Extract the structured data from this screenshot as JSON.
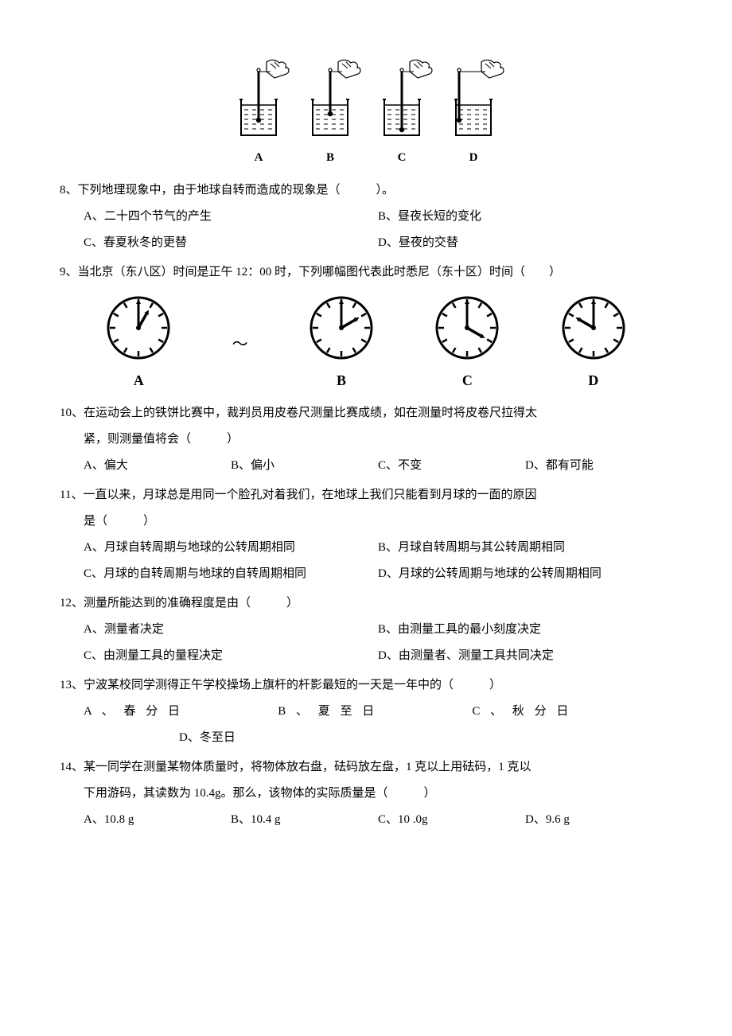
{
  "beaker_figure": {
    "labels": [
      "A",
      "B",
      "C",
      "D"
    ],
    "thermo_depth": [
      26,
      18,
      38,
      26
    ],
    "touches_side": [
      false,
      false,
      false,
      true
    ],
    "stroke": "#000000",
    "fill": "#ffffff"
  },
  "q8": {
    "stem": "8、下列地理现象中，由于地球自转而造成的现象是（　　　）。",
    "optA": "A、二十四个节气的产生",
    "optB": "B、昼夜长短的变化",
    "optC": "C、春夏秋冬的更替",
    "optD": "D、昼夜的交替"
  },
  "q9": {
    "stem": "9、当北京（东八区）时间是正午 12：00 时，下列哪幅图代表此时悉尼（东十区）时间（　　）",
    "clocks": {
      "labels": [
        "A",
        "B",
        "C",
        "D"
      ],
      "minute_angle": [
        0,
        0,
        0,
        0
      ],
      "hour_angle": [
        30,
        60,
        120,
        300
      ],
      "stroke": "#000000"
    }
  },
  "q10": {
    "stem": "10、在运动会上的铁饼比赛中，裁判员用皮卷尺测量比赛成绩，如在测量时将皮卷尺拉得太",
    "cont": "紧，则测量值将会（　　　）",
    "optA": "A、偏大",
    "optB": "B、偏小",
    "optC": "C、不变",
    "optD": "D、都有可能"
  },
  "q11": {
    "stem": "11、一直以来，月球总是用同一个脸孔对着我们，在地球上我们只能看到月球的一面的原因",
    "cont": "是（　　　）",
    "optA": "A、月球自转周期与地球的公转周期相同",
    "optB": "B、月球自转周期与其公转周期相同",
    "optC": "C、月球的自转周期与地球的自转周期相同",
    "optD": "D、月球的公转周期与地球的公转周期相同"
  },
  "q12": {
    "stem": "12、测量所能达到的准确程度是由（　　　）",
    "optA": "A、测量者决定",
    "optB": "B、由测量工具的最小刻度决定",
    "optC": "C、由测量工具的量程决定",
    "optD": "D、由测量者、测量工具共同决定"
  },
  "q13": {
    "stem": "13、宁波某校同学测得正午学校操场上旗杆的杆影最短的一天是一年中的（　　　）",
    "optA": "A 、 春 分 日",
    "optB": "B 、 夏 至 日",
    "optC": "C 、 秋 分 日",
    "optD": "D、冬至日"
  },
  "q14": {
    "stem": "14、某一同学在测量某物体质量时，将物体放右盘，砝码放左盘，1 克以上用砝码，1 克以",
    "cont": "下用游码，其读数为 10.4g。那么，该物体的实际质量是（　　　）",
    "optA": "A、10.8 g",
    "optB": "B、10.4 g",
    "optC": "C、10 .0g",
    "optD": "D、9.6 g"
  }
}
